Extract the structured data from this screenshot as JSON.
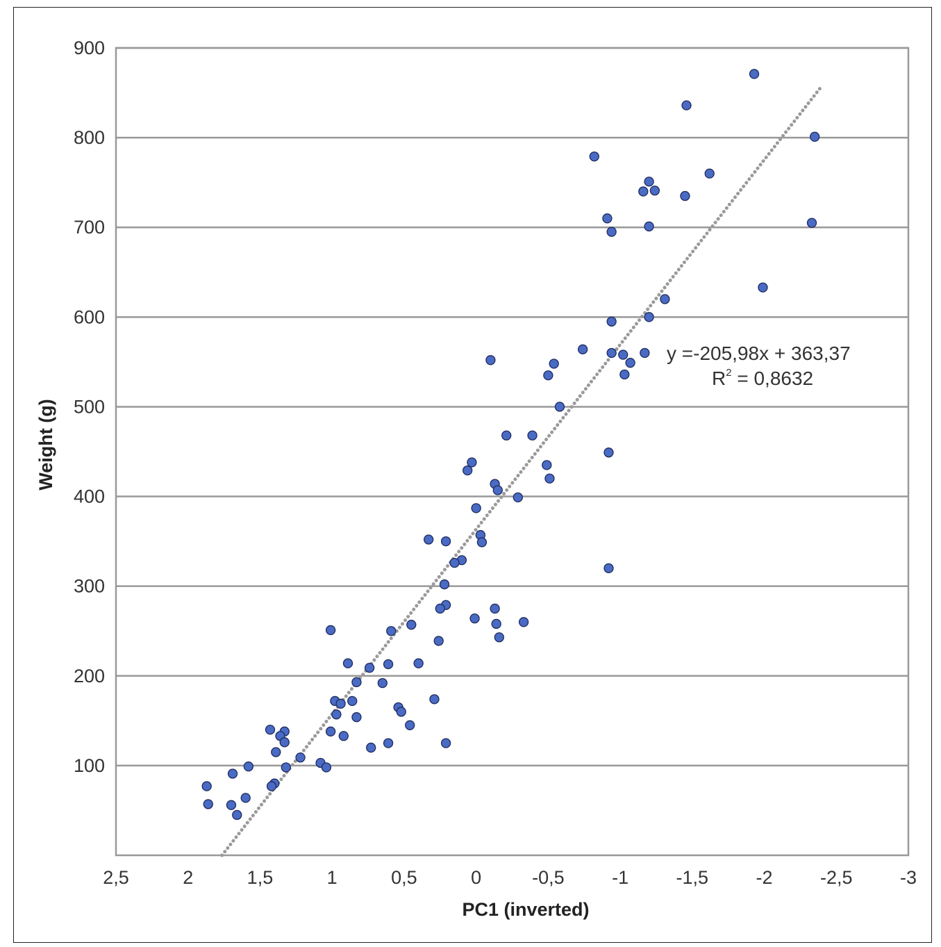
{
  "chart_data": {
    "type": "scatter",
    "xlabel": "PC1 (inverted)",
    "ylabel": "Weight (g)",
    "xlim": [
      2.5,
      -3
    ],
    "ylim": [
      0,
      900
    ],
    "x_ticks": [
      2.5,
      2,
      1.5,
      1,
      0.5,
      0,
      -0.5,
      -1,
      -1.5,
      -2,
      -2.5,
      -3
    ],
    "x_tick_labels": [
      "2,5",
      "2",
      "1,5",
      "1",
      "0,5",
      "0",
      "-0,5",
      "-1",
      "-1,5",
      "-2",
      "-2,5",
      "-3"
    ],
    "y_ticks": [
      100,
      200,
      300,
      400,
      500,
      600,
      700,
      800,
      900
    ],
    "y_tick_labels": [
      "100",
      "200",
      "300",
      "400",
      "500",
      "600",
      "700",
      "800",
      "900"
    ],
    "grid": true,
    "colors": {
      "points": "#4a6bc4",
      "trendline": "#9a9a9a",
      "grid": "#999999"
    },
    "trendline": {
      "slope": -205.98,
      "intercept": 363.37,
      "equation": "y =-205,98x + 363,37",
      "r2_prefix": "R",
      "r2_exp": "2",
      "r2_suffix": " = 0,8632"
    },
    "points": [
      [
        -1.93,
        871
      ],
      [
        -1.46,
        836
      ],
      [
        -2.35,
        801
      ],
      [
        -0.82,
        779
      ],
      [
        -1.62,
        760
      ],
      [
        -1.2,
        751
      ],
      [
        -1.24,
        741
      ],
      [
        -1.16,
        740
      ],
      [
        -1.45,
        735
      ],
      [
        -0.91,
        710
      ],
      [
        -2.33,
        705
      ],
      [
        -1.2,
        701
      ],
      [
        -0.94,
        695
      ],
      [
        -1.99,
        633
      ],
      [
        -1.31,
        620
      ],
      [
        -1.2,
        600
      ],
      [
        -0.94,
        595
      ],
      [
        -0.74,
        564
      ],
      [
        -0.94,
        560
      ],
      [
        -1.02,
        558
      ],
      [
        -1.17,
        560
      ],
      [
        -0.1,
        552
      ],
      [
        -1.07,
        549
      ],
      [
        -0.54,
        548
      ],
      [
        -1.03,
        536
      ],
      [
        -0.5,
        535
      ],
      [
        -0.58,
        500
      ],
      [
        -0.21,
        468
      ],
      [
        -0.39,
        468
      ],
      [
        -0.92,
        449
      ],
      [
        0.03,
        438
      ],
      [
        -0.49,
        435
      ],
      [
        0.06,
        429
      ],
      [
        -0.51,
        420
      ],
      [
        -0.13,
        414
      ],
      [
        -0.15,
        407
      ],
      [
        -0.29,
        399
      ],
      [
        0,
        387
      ],
      [
        -0.03,
        357
      ],
      [
        0.33,
        352
      ],
      [
        0.21,
        350
      ],
      [
        -0.04,
        349
      ],
      [
        0.1,
        329
      ],
      [
        0.15,
        326
      ],
      [
        -0.92,
        320
      ],
      [
        0.22,
        302
      ],
      [
        0.21,
        279
      ],
      [
        0.25,
        275
      ],
      [
        -0.13,
        275
      ],
      [
        0.01,
        264
      ],
      [
        -0.33,
        260
      ],
      [
        -0.14,
        258
      ],
      [
        0.45,
        257
      ],
      [
        0.59,
        250
      ],
      [
        1.01,
        251
      ],
      [
        0.26,
        239
      ],
      [
        -0.16,
        243
      ],
      [
        0.89,
        214
      ],
      [
        0.4,
        214
      ],
      [
        0.61,
        213
      ],
      [
        0.74,
        209
      ],
      [
        0.83,
        193
      ],
      [
        0.65,
        192
      ],
      [
        0.29,
        174
      ],
      [
        0.98,
        172
      ],
      [
        0.86,
        172
      ],
      [
        0.94,
        169
      ],
      [
        0.54,
        165
      ],
      [
        0.52,
        160
      ],
      [
        0.97,
        157
      ],
      [
        0.83,
        154
      ],
      [
        0.46,
        145
      ],
      [
        1.43,
        140
      ],
      [
        1.33,
        138
      ],
      [
        1.01,
        138
      ],
      [
        1.36,
        133
      ],
      [
        0.92,
        133
      ],
      [
        1.33,
        126
      ],
      [
        0.61,
        125
      ],
      [
        0.21,
        125
      ],
      [
        0.73,
        120
      ],
      [
        1.39,
        115
      ],
      [
        1.22,
        109
      ],
      [
        1.08,
        103
      ],
      [
        1.58,
        99
      ],
      [
        1.32,
        98
      ],
      [
        1.04,
        98
      ],
      [
        1.69,
        91
      ],
      [
        1.4,
        80
      ],
      [
        1.42,
        77
      ],
      [
        1.87,
        77
      ],
      [
        1.6,
        64
      ],
      [
        1.86,
        57
      ],
      [
        1.7,
        56
      ],
      [
        1.66,
        45
      ]
    ]
  }
}
